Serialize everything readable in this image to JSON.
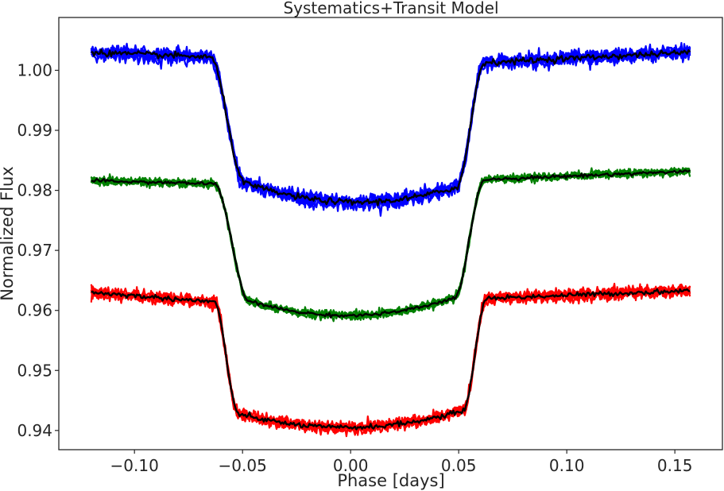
{
  "chart_data": {
    "type": "line",
    "title": "Systematics+Transit Model",
    "xlabel": "Phase [days]",
    "ylabel": "Normalized Flux",
    "xlim": [
      -0.135,
      0.172
    ],
    "ylim": [
      0.9368,
      1.0088
    ],
    "xticks": [
      -0.1,
      -0.05,
      0.0,
      0.05,
      0.1,
      0.15
    ],
    "xtick_labels": [
      "−0.10",
      "−0.05",
      "0.00",
      "0.05",
      "0.10",
      "0.15"
    ],
    "yticks": [
      0.94,
      0.95,
      0.96,
      0.97,
      0.98,
      0.99,
      1.0
    ],
    "ytick_labels": [
      "0.94",
      "0.95",
      "0.96",
      "0.97",
      "0.98",
      "0.99",
      "1.00"
    ],
    "grid": false,
    "legend": "none",
    "x_range": [
      -0.12,
      0.157
    ],
    "colors": {
      "top": "#0000ff",
      "middle": "#008000",
      "bottom": "#ff0000",
      "model": "#000000",
      "axes": "#262626"
    },
    "series": [
      {
        "color": "#0000ff",
        "baseline_x": [
          -0.12,
          -0.065,
          0.062,
          0.157
        ],
        "baseline_y": [
          1.003,
          1.0022,
          1.0013,
          1.003
        ],
        "depth": 0.0237,
        "t_ingress": [
          -0.065,
          -0.049
        ],
        "t_egress": [
          0.049,
          0.062
        ],
        "noise": 0.0011
      },
      {
        "color": "#008000",
        "baseline_x": [
          -0.12,
          -0.063,
          0.062,
          0.157
        ],
        "baseline_y": [
          0.9816,
          0.9811,
          0.9818,
          0.9832
        ],
        "depth": 0.0223,
        "t_ingress": [
          -0.063,
          -0.047
        ],
        "t_egress": [
          0.048,
          0.062
        ],
        "noise": 0.0006
      },
      {
        "color": "#ff0000",
        "baseline_x": [
          -0.12,
          -0.063,
          0.062,
          0.157
        ],
        "baseline_y": [
          0.963,
          0.9614,
          0.962,
          0.9633
        ],
        "depth": 0.0212,
        "t_ingress": [
          -0.063,
          -0.052
        ],
        "t_egress": [
          0.052,
          0.063
        ],
        "noise": 0.0009
      }
    ]
  }
}
